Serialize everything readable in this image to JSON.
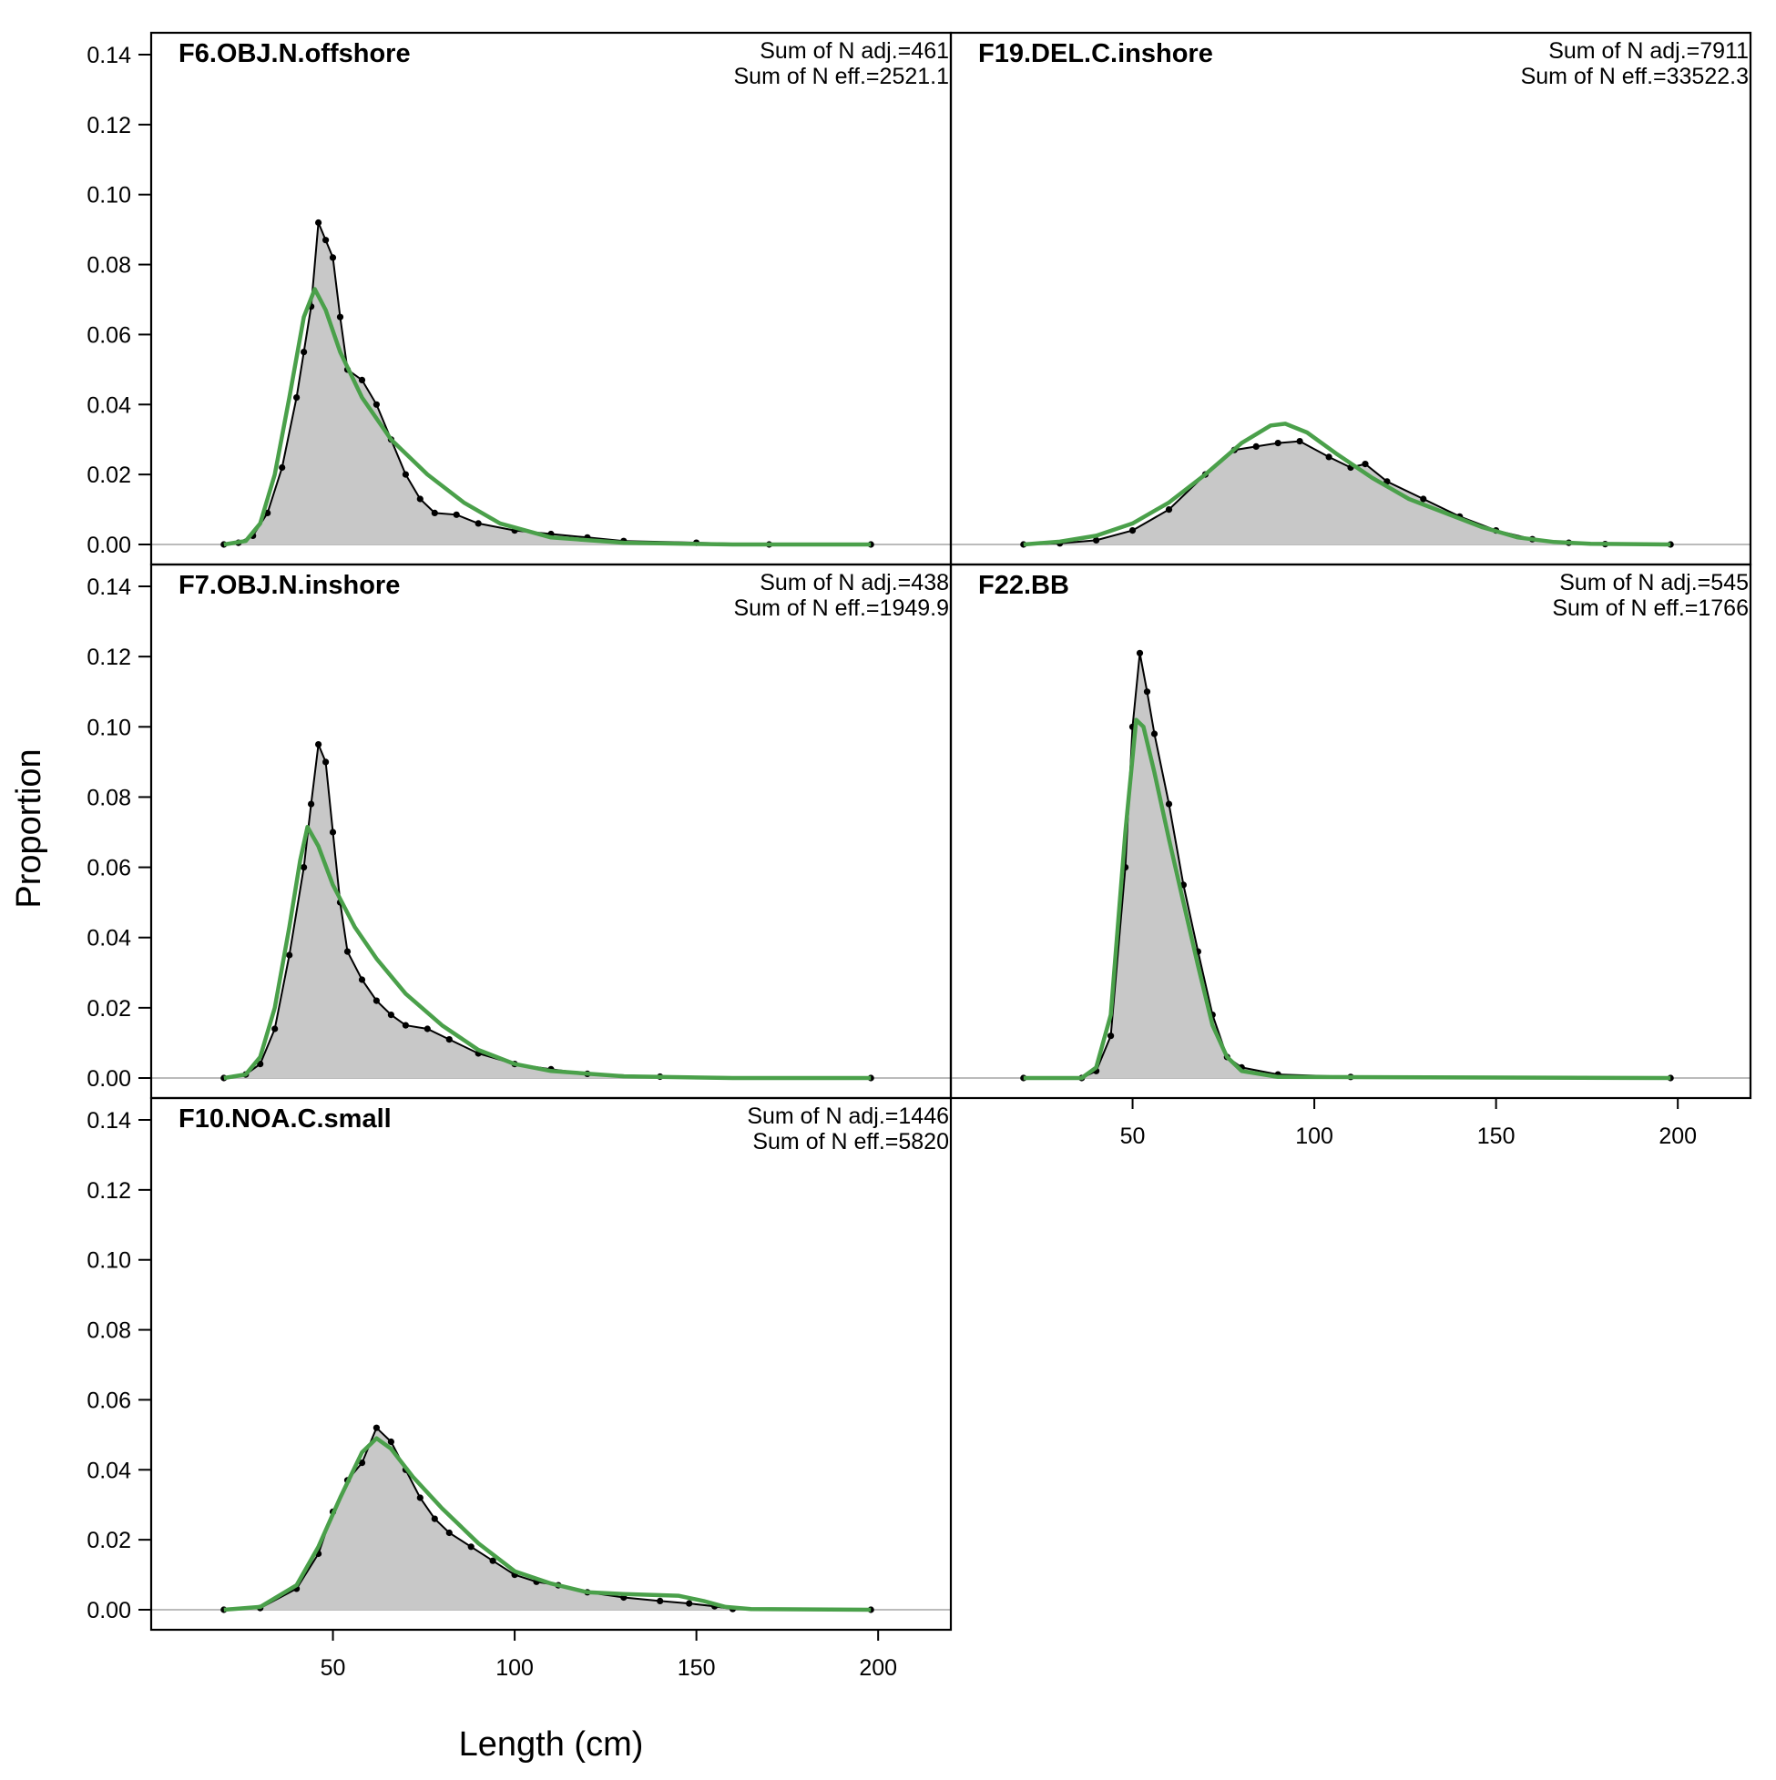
{
  "chart_data": {
    "type": "area",
    "xlabel": "Length (cm)",
    "ylabel": "Proportion",
    "xlim": [
      0,
      220
    ],
    "ylim": [
      0,
      0.14
    ],
    "x_ticks": [
      50,
      100,
      150,
      200
    ],
    "y_ticks": [
      "0.00",
      "0.02",
      "0.04",
      "0.06",
      "0.08",
      "0.10",
      "0.12",
      "0.14"
    ],
    "colors": {
      "observed_fill": "#c8c8c8",
      "observed_line": "#000000",
      "expected_line": "#4aa04a",
      "zero_line": "#bbbbbb",
      "expected_points": "#1a6b1a"
    },
    "panels": [
      {
        "name": "F6.OBJ.N.offshore",
        "sum_n_adj": "Sum of N adj.=461",
        "sum_n_eff": "Sum of N eff.=2521.1",
        "observed": [
          [
            20,
            0.0
          ],
          [
            24,
            0.0005
          ],
          [
            28,
            0.0025
          ],
          [
            32,
            0.009
          ],
          [
            36,
            0.022
          ],
          [
            40,
            0.042
          ],
          [
            42,
            0.055
          ],
          [
            44,
            0.068
          ],
          [
            46,
            0.092
          ],
          [
            48,
            0.087
          ],
          [
            50,
            0.082
          ],
          [
            52,
            0.065
          ],
          [
            54,
            0.05
          ],
          [
            58,
            0.047
          ],
          [
            62,
            0.04
          ],
          [
            66,
            0.03
          ],
          [
            70,
            0.02
          ],
          [
            74,
            0.013
          ],
          [
            78,
            0.009
          ],
          [
            84,
            0.0085
          ],
          [
            90,
            0.006
          ],
          [
            100,
            0.004
          ],
          [
            110,
            0.003
          ],
          [
            120,
            0.002
          ],
          [
            130,
            0.001
          ],
          [
            150,
            0.0005
          ],
          [
            170,
            0.0
          ],
          [
            198,
            0.0
          ]
        ],
        "expected": [
          [
            20,
            0.0
          ],
          [
            26,
            0.001
          ],
          [
            30,
            0.006
          ],
          [
            34,
            0.02
          ],
          [
            38,
            0.042
          ],
          [
            42,
            0.065
          ],
          [
            45,
            0.073
          ],
          [
            48,
            0.067
          ],
          [
            52,
            0.055
          ],
          [
            58,
            0.042
          ],
          [
            66,
            0.03
          ],
          [
            76,
            0.02
          ],
          [
            86,
            0.012
          ],
          [
            96,
            0.006
          ],
          [
            110,
            0.002
          ],
          [
            130,
            0.0005
          ],
          [
            160,
            0.0
          ],
          [
            198,
            0.0
          ]
        ]
      },
      {
        "name": "F19.DEL.C.inshore",
        "sum_n_adj": "Sum of N adj.=7911",
        "sum_n_eff": "Sum of N eff.=33522.3",
        "observed": [
          [
            20,
            0.0
          ],
          [
            30,
            0.0003
          ],
          [
            40,
            0.0012
          ],
          [
            50,
            0.004
          ],
          [
            60,
            0.01
          ],
          [
            70,
            0.02
          ],
          [
            78,
            0.027
          ],
          [
            84,
            0.028
          ],
          [
            90,
            0.029
          ],
          [
            96,
            0.0295
          ],
          [
            104,
            0.025
          ],
          [
            110,
            0.022
          ],
          [
            114,
            0.023
          ],
          [
            120,
            0.018
          ],
          [
            130,
            0.013
          ],
          [
            140,
            0.008
          ],
          [
            150,
            0.004
          ],
          [
            160,
            0.0015
          ],
          [
            170,
            0.0005
          ],
          [
            180,
            0.0001
          ],
          [
            198,
            0.0
          ]
        ],
        "expected": [
          [
            20,
            0.0
          ],
          [
            30,
            0.0008
          ],
          [
            40,
            0.0025
          ],
          [
            50,
            0.006
          ],
          [
            60,
            0.012
          ],
          [
            70,
            0.02
          ],
          [
            80,
            0.029
          ],
          [
            88,
            0.034
          ],
          [
            92,
            0.0345
          ],
          [
            98,
            0.032
          ],
          [
            106,
            0.026
          ],
          [
            116,
            0.019
          ],
          [
            126,
            0.013
          ],
          [
            136,
            0.009
          ],
          [
            146,
            0.005
          ],
          [
            156,
            0.002
          ],
          [
            166,
            0.0007
          ],
          [
            176,
            0.0002
          ],
          [
            198,
            0.0
          ]
        ]
      },
      {
        "name": "F7.OBJ.N.inshore",
        "sum_n_adj": "Sum of N adj.=438",
        "sum_n_eff": "Sum of N eff.=1949.9",
        "observed": [
          [
            20,
            0.0
          ],
          [
            26,
            0.001
          ],
          [
            30,
            0.004
          ],
          [
            34,
            0.014
          ],
          [
            38,
            0.035
          ],
          [
            42,
            0.06
          ],
          [
            44,
            0.078
          ],
          [
            46,
            0.095
          ],
          [
            48,
            0.09
          ],
          [
            50,
            0.07
          ],
          [
            52,
            0.05
          ],
          [
            54,
            0.036
          ],
          [
            58,
            0.028
          ],
          [
            62,
            0.022
          ],
          [
            66,
            0.018
          ],
          [
            70,
            0.015
          ],
          [
            76,
            0.014
          ],
          [
            82,
            0.011
          ],
          [
            90,
            0.007
          ],
          [
            100,
            0.004
          ],
          [
            110,
            0.0025
          ],
          [
            120,
            0.0012
          ],
          [
            140,
            0.0004
          ],
          [
            198,
            0.0
          ]
        ],
        "expected": [
          [
            20,
            0.0
          ],
          [
            26,
            0.001
          ],
          [
            30,
            0.006
          ],
          [
            34,
            0.02
          ],
          [
            38,
            0.043
          ],
          [
            41,
            0.062
          ],
          [
            43,
            0.0715
          ],
          [
            46,
            0.066
          ],
          [
            50,
            0.055
          ],
          [
            56,
            0.043
          ],
          [
            62,
            0.034
          ],
          [
            70,
            0.024
          ],
          [
            80,
            0.015
          ],
          [
            90,
            0.008
          ],
          [
            100,
            0.004
          ],
          [
            110,
            0.002
          ],
          [
            130,
            0.0005
          ],
          [
            160,
            0.0
          ],
          [
            198,
            0.0
          ]
        ]
      },
      {
        "name": "F22.BB",
        "sum_n_adj": "Sum of N adj.=545",
        "sum_n_eff": "Sum of N eff.=1766",
        "observed": [
          [
            20,
            0.0
          ],
          [
            36,
            0.0
          ],
          [
            40,
            0.002
          ],
          [
            44,
            0.012
          ],
          [
            48,
            0.06
          ],
          [
            50,
            0.1
          ],
          [
            52,
            0.121
          ],
          [
            54,
            0.11
          ],
          [
            56,
            0.098
          ],
          [
            60,
            0.078
          ],
          [
            64,
            0.055
          ],
          [
            68,
            0.036
          ],
          [
            72,
            0.018
          ],
          [
            76,
            0.006
          ],
          [
            80,
            0.003
          ],
          [
            90,
            0.001
          ],
          [
            110,
            0.0003
          ],
          [
            198,
            0.0
          ]
        ],
        "expected": [
          [
            20,
            0.0
          ],
          [
            36,
            0.0
          ],
          [
            40,
            0.003
          ],
          [
            44,
            0.018
          ],
          [
            48,
            0.07
          ],
          [
            51,
            0.102
          ],
          [
            53,
            0.1
          ],
          [
            56,
            0.087
          ],
          [
            60,
            0.068
          ],
          [
            64,
            0.05
          ],
          [
            68,
            0.032
          ],
          [
            72,
            0.015
          ],
          [
            76,
            0.006
          ],
          [
            80,
            0.002
          ],
          [
            90,
            0.0003
          ],
          [
            198,
            0.0
          ]
        ]
      },
      {
        "name": "F10.NOA.C.small",
        "sum_n_adj": "Sum of N adj.=1446",
        "sum_n_eff": "Sum of N eff.=5820",
        "observed": [
          [
            20,
            0.0
          ],
          [
            30,
            0.0005
          ],
          [
            40,
            0.006
          ],
          [
            46,
            0.016
          ],
          [
            50,
            0.028
          ],
          [
            54,
            0.037
          ],
          [
            58,
            0.042
          ],
          [
            62,
            0.052
          ],
          [
            66,
            0.048
          ],
          [
            70,
            0.04
          ],
          [
            74,
            0.032
          ],
          [
            78,
            0.026
          ],
          [
            82,
            0.022
          ],
          [
            88,
            0.018
          ],
          [
            94,
            0.014
          ],
          [
            100,
            0.01
          ],
          [
            106,
            0.008
          ],
          [
            112,
            0.007
          ],
          [
            120,
            0.005
          ],
          [
            130,
            0.0035
          ],
          [
            140,
            0.0025
          ],
          [
            148,
            0.0018
          ],
          [
            155,
            0.001
          ],
          [
            160,
            0.0002
          ],
          [
            198,
            0.0
          ]
        ],
        "expected": [
          [
            20,
            0.0
          ],
          [
            30,
            0.0008
          ],
          [
            40,
            0.007
          ],
          [
            46,
            0.018
          ],
          [
            52,
            0.032
          ],
          [
            58,
            0.045
          ],
          [
            62,
            0.049
          ],
          [
            66,
            0.046
          ],
          [
            72,
            0.038
          ],
          [
            80,
            0.029
          ],
          [
            90,
            0.019
          ],
          [
            100,
            0.011
          ],
          [
            110,
            0.0075
          ],
          [
            120,
            0.005
          ],
          [
            130,
            0.0045
          ],
          [
            145,
            0.004
          ],
          [
            152,
            0.0025
          ],
          [
            158,
            0.0008
          ],
          [
            165,
            0.0002
          ],
          [
            198,
            0.0
          ]
        ]
      }
    ]
  }
}
